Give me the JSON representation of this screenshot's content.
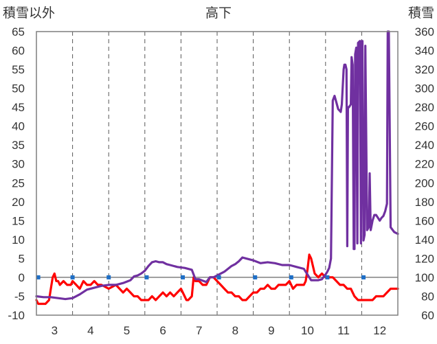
{
  "chart_data": {
    "type": "line",
    "title": "高下",
    "left_axis_label": "積雪以外",
    "right_axis_label": "積雪",
    "x_ticks": [
      "3",
      "4",
      "5",
      "6",
      "7",
      "8",
      "9",
      "10",
      "11",
      "12"
    ],
    "xlim": [
      2.5,
      12.5
    ],
    "y_left_ticks": [
      "-10",
      "-5",
      "0",
      "5",
      "10",
      "15",
      "20",
      "25",
      "30",
      "35",
      "40",
      "45",
      "50",
      "55",
      "60",
      "65"
    ],
    "y_right_ticks": [
      "60",
      "80",
      "100",
      "120",
      "140",
      "160",
      "180",
      "200",
      "220",
      "240",
      "260",
      "280",
      "300",
      "320",
      "340",
      "360"
    ],
    "ylim_left": [
      -10,
      65
    ],
    "ylim_right": [
      60,
      360
    ],
    "grid": {
      "vertical": "dashed",
      "horizontal": "none"
    },
    "series": [
      {
        "axis": "left",
        "color": "#ff0000",
        "x": [
          2.5,
          2.55,
          2.65,
          2.75,
          2.85,
          2.9,
          2.95,
          3.0,
          3.05,
          3.1,
          3.15,
          3.25,
          3.35,
          3.45,
          3.5,
          3.6,
          3.7,
          3.8,
          3.9,
          4.0,
          4.1,
          4.2,
          4.3,
          4.5,
          4.7,
          4.9,
          5.0,
          5.1,
          5.2,
          5.3,
          5.4,
          5.5,
          5.6,
          5.7,
          5.8,
          5.9,
          6.0,
          6.1,
          6.2,
          6.3,
          6.4,
          6.5,
          6.6,
          6.65,
          6.7,
          6.8,
          6.85,
          6.9,
          7.0,
          7.1,
          7.2,
          7.3,
          7.4,
          7.5,
          7.6,
          7.7,
          7.8,
          7.9,
          8.0,
          8.1,
          8.2,
          8.3,
          8.4,
          8.5,
          8.6,
          8.7,
          8.8,
          8.9,
          9.0,
          9.1,
          9.2,
          9.3,
          9.4,
          9.5,
          9.6,
          9.7,
          9.8,
          9.9,
          9.95,
          10.0,
          10.05,
          10.1,
          10.15,
          10.2,
          10.3,
          10.4,
          10.5,
          10.6,
          10.7,
          10.8,
          10.9,
          11.0,
          11.1,
          11.2,
          11.3,
          11.4,
          11.5,
          11.6,
          11.7,
          11.8,
          11.9,
          12.0,
          12.1,
          12.2,
          12.3,
          12.4,
          12.5
        ],
        "y": [
          -6,
          -7,
          -7,
          -7,
          -6,
          -3,
          0,
          1,
          -1,
          -1,
          -2,
          -1,
          -2,
          -2,
          -1,
          -2,
          -3,
          -1,
          -2,
          -2,
          -1,
          -2,
          -2,
          -3,
          -2,
          -4,
          -3,
          -4,
          -5,
          -5,
          -6,
          -6,
          -6,
          -5,
          -6,
          -5,
          -4,
          -5,
          -4,
          -5,
          -4,
          -3,
          -5,
          -6,
          -6,
          -5,
          0,
          -1,
          -1,
          -2,
          -2,
          0,
          0,
          -1,
          -2,
          -3,
          -4,
          -4,
          -5,
          -5,
          -6,
          -6,
          -5,
          -4,
          -4,
          -3,
          -3,
          -2,
          -3,
          -3,
          -2,
          -2,
          -2,
          -1,
          -3,
          -2,
          -2,
          -2,
          -1,
          2,
          6,
          5,
          3,
          1,
          0,
          1,
          0,
          0,
          0,
          -1,
          -2,
          -2,
          -3,
          -3,
          -5,
          -6,
          -6,
          -6,
          -6,
          -6,
          -5,
          -5,
          -5,
          -4,
          -3,
          -3,
          -3
        ]
      },
      {
        "axis": "right",
        "color": "#7030a0",
        "x": [
          2.5,
          2.7,
          2.9,
          3.1,
          3.3,
          3.5,
          3.7,
          3.9,
          4.1,
          4.3,
          4.5,
          4.7,
          4.9,
          5.1,
          5.2,
          5.3,
          5.4,
          5.5,
          5.6,
          5.7,
          5.8,
          5.9,
          6.0,
          6.1,
          6.2,
          6.4,
          6.6,
          6.8,
          6.9,
          7.0,
          7.2,
          7.3,
          7.4,
          7.5,
          7.7,
          7.9,
          8.0,
          8.1,
          8.2,
          8.3,
          8.5,
          8.7,
          8.9,
          9.1,
          9.3,
          9.5,
          9.7,
          9.9,
          10.1,
          10.2,
          10.3,
          10.4,
          10.5,
          10.55,
          10.6,
          10.65,
          10.7,
          10.75,
          10.8,
          10.85,
          10.9,
          10.92,
          10.95,
          11.0,
          11.02,
          11.05,
          11.08,
          11.1,
          11.12,
          11.15,
          11.18,
          11.2,
          11.22,
          11.25,
          11.28,
          11.3,
          11.32,
          11.35,
          11.38,
          11.4,
          11.45,
          11.48,
          11.5,
          11.52,
          11.55,
          11.58,
          11.6,
          11.65,
          11.68,
          11.7,
          11.72,
          11.75,
          11.8,
          11.85,
          11.9,
          11.95,
          12.0,
          12.05,
          12.1,
          12.15,
          12.2,
          12.22,
          12.25,
          12.3,
          12.4,
          12.5
        ],
        "y": [
          80,
          79,
          79,
          78,
          77,
          78,
          82,
          87,
          89,
          91,
          92,
          92,
          94,
          97,
          101,
          102,
          104,
          107,
          112,
          116,
          117,
          116,
          116,
          114,
          113,
          111,
          110,
          108,
          98,
          98,
          95,
          100,
          100,
          102,
          106,
          112,
          114,
          117,
          121,
          120,
          118,
          115,
          116,
          115,
          113,
          113,
          111,
          109,
          97,
          97,
          97,
          98,
          103,
          106,
          110,
          120,
          287,
          292,
          285,
          278,
          276,
          275,
          283,
          320,
          325,
          325,
          320,
          133,
          280,
          280,
          282,
          283,
          333,
          325,
          130,
          130,
          336,
          343,
          136,
          348,
          350,
          136,
          350,
          350,
          139,
          145,
          345,
          150,
          152,
          154,
          210,
          150,
          160,
          166,
          166,
          163,
          160,
          163,
          165,
          170,
          178,
          370,
          370,
          153,
          148,
          146
        ]
      }
    ],
    "markers": {
      "color": "#1f6fc6",
      "axis": "left",
      "x": [
        2.55,
        3.5,
        4.5,
        5.55,
        6.55,
        7.55,
        8.55,
        9.55,
        10.55,
        11.55
      ],
      "y": [
        0,
        0,
        0,
        0,
        0,
        0,
        0,
        0,
        0,
        0
      ]
    }
  }
}
